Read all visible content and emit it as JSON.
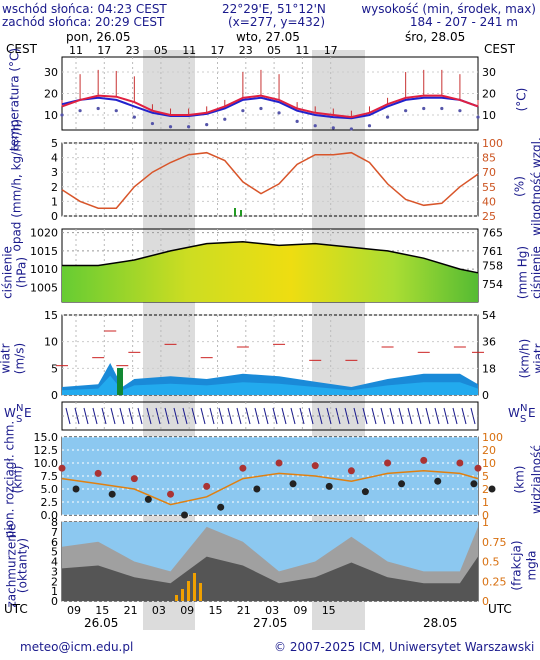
{
  "header": {
    "sunrise": "wschód słońca: 04:23 CEST",
    "sunset": "zachód słońca: 20:29 CEST",
    "coords": "22°29'E, 51°12'N",
    "grid": "(x=277, y=432)",
    "elev_title": "wysokość (min, środek, max)",
    "elev_vals": "184 - 207 - 241 m"
  },
  "timeline": {
    "tz": "CEST",
    "days": [
      "pon, 26.05",
      "wto, 27.05",
      "śro, 28.05"
    ],
    "top_ticks": [
      "11",
      "17",
      "23",
      "05",
      "11",
      "17",
      "23",
      "05",
      "11",
      "17"
    ],
    "utc_label": "UTC",
    "bottom_ticks": [
      "09",
      "15",
      "21",
      "03",
      "09",
      "15",
      "21",
      "03",
      "09",
      "15"
    ],
    "bottom_days": [
      "26.05",
      "27.05",
      "28.05"
    ]
  },
  "panels": {
    "temp": {
      "left_label": "temperatura (°C)",
      "right_label": "(°C)",
      "left_ticks": [
        "30",
        "20",
        "10"
      ],
      "right_ticks": [
        "30",
        "20",
        "10"
      ]
    },
    "precip": {
      "left_label": "opad (mm/h, kg/m²/h)",
      "right_label_a": "wilgotność wzgl.",
      "right_label_b": "(%)",
      "left_ticks": [
        "5",
        "4",
        "3",
        "2",
        "1",
        "0"
      ],
      "right_ticks": [
        "100",
        "85",
        "70",
        "55",
        "40",
        "25"
      ]
    },
    "pressure": {
      "left_label_a": "ciśnienie",
      "left_label_b": "(hPa)",
      "right_label_a": "(mm Hg)",
      "right_label_b": "ciśnienie",
      "left_ticks": [
        "1020",
        "1015",
        "1010",
        "1005"
      ],
      "right_ticks": [
        "765",
        "761",
        "758",
        "754"
      ]
    },
    "wind": {
      "left_label_a": "wiatr",
      "left_label_b": "(m/s)",
      "right_label_a": "(km/h)",
      "right_label_b": "wiatr",
      "left_ticks": [
        "15",
        "10",
        "5",
        "0"
      ],
      "right_ticks": [
        "54",
        "36",
        "18",
        "0"
      ]
    },
    "dir": {
      "w": "W",
      "e": "E",
      "n": "N",
      "s": "S"
    },
    "vis": {
      "left_label_a": "pion. rozciągł. chm.",
      "left_label_b": "(km)",
      "right_label_a": "(km)",
      "right_label_b": "widzialność",
      "left_ticks": [
        "15.0",
        "12.5",
        "10.0",
        "7.5",
        "5.0",
        "2.5",
        "0.0"
      ],
      "right_ticks": [
        "100",
        "20",
        "10",
        "5",
        "2",
        "1",
        "0"
      ]
    },
    "cloud": {
      "left_label_a": "zachmurzenie",
      "left_label_b": "(oktanty)",
      "right_label_a": "(frakcja)",
      "right_label_b": "mgła",
      "left_ticks": [
        "8",
        "7",
        "6",
        "5",
        "4",
        "3",
        "2",
        "1",
        "0"
      ],
      "right_ticks": [
        "1",
        "0.75",
        "0.5",
        "0.25",
        "0"
      ]
    }
  },
  "chart_data": [
    {
      "type": "line",
      "name": "temperature",
      "x": [
        0,
        3,
        6,
        9,
        12,
        15,
        18,
        21,
        24,
        27,
        30,
        33,
        36,
        39,
        42,
        45,
        48,
        51,
        54,
        57,
        60,
        63,
        66,
        69
      ],
      "series": [
        {
          "values": [
            14,
            17,
            19,
            18.5,
            16,
            12,
            10,
            10,
            11,
            14,
            18,
            19,
            17,
            13,
            11,
            10,
            9,
            11,
            15,
            18,
            19,
            19,
            17,
            14
          ]
        },
        {
          "values": [
            15,
            17,
            18,
            17,
            14,
            11,
            9.5,
            9.5,
            10.5,
            13,
            17,
            18,
            16,
            12,
            10,
            9,
            8.5,
            10,
            14,
            17,
            18,
            18,
            17,
            14
          ]
        }
      ],
      "ylim": [
        3,
        37
      ]
    },
    {
      "type": "line",
      "name": "humidity",
      "x": [
        0,
        3,
        6,
        9,
        12,
        15,
        18,
        21,
        24,
        27,
        30,
        33,
        36,
        39,
        42,
        45,
        48,
        51,
        54,
        57,
        60,
        63,
        66,
        69
      ],
      "values": [
        52,
        40,
        33,
        33,
        55,
        70,
        80,
        88,
        90,
        82,
        60,
        48,
        58,
        78,
        88,
        88,
        90,
        80,
        58,
        42,
        36,
        38,
        55,
        68
      ],
      "ylim": [
        25,
        100
      ]
    },
    {
      "type": "area",
      "name": "pressure",
      "x": [
        0,
        6,
        12,
        18,
        24,
        30,
        36,
        42,
        48,
        54,
        60,
        66,
        69
      ],
      "values": [
        1011,
        1011,
        1012.5,
        1015,
        1017,
        1017.5,
        1016.5,
        1017,
        1016,
        1015,
        1013,
        1010,
        1009
      ],
      "ylim": [
        1001,
        1021
      ]
    },
    {
      "type": "area",
      "name": "wind",
      "x": [
        0,
        6,
        8,
        10,
        12,
        18,
        24,
        30,
        36,
        42,
        48,
        54,
        60,
        66,
        69
      ],
      "values": [
        1.5,
        2,
        6,
        1.5,
        3,
        3.5,
        3,
        4,
        3.5,
        2.5,
        1.5,
        3,
        4,
        4,
        2
      ],
      "ylim": [
        0,
        15
      ]
    },
    {
      "type": "scatter",
      "name": "visibility",
      "x": [
        0,
        6,
        12,
        18,
        24,
        30,
        36,
        42,
        48,
        54,
        60,
        66,
        69
      ],
      "values": [
        7,
        6,
        5,
        2,
        3.5,
        7,
        8,
        7.5,
        6.5,
        8,
        8.5,
        8,
        7
      ],
      "ylim": [
        0,
        15
      ]
    },
    {
      "type": "area",
      "name": "cloud",
      "x": [
        0,
        6,
        12,
        18,
        24,
        30,
        36,
        42,
        48,
        54,
        60,
        66,
        69
      ],
      "values": [
        5.5,
        6,
        4,
        3,
        7.5,
        6,
        3,
        4,
        6.5,
        4,
        3,
        3,
        7.5
      ],
      "ylim": [
        0,
        8
      ]
    }
  ],
  "footer": {
    "email": "meteo@icm.edu.pl",
    "copy": "© 2007-2025 ICM, Uniwersytet Warszawski"
  }
}
